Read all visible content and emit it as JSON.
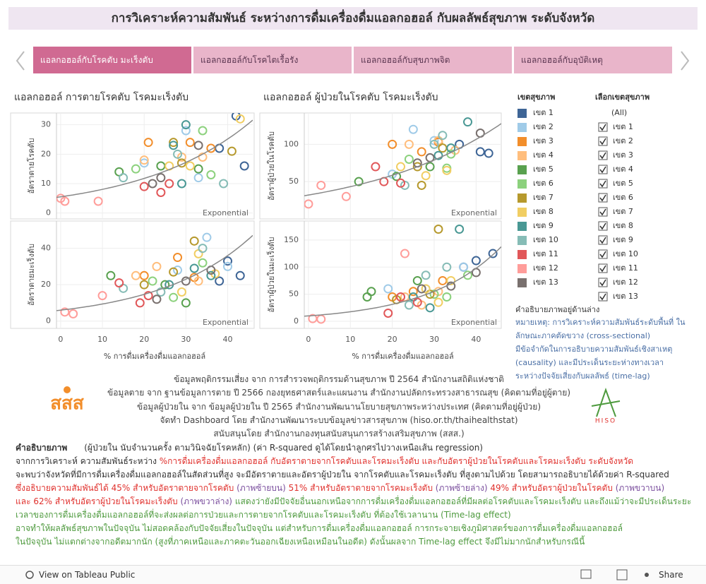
{
  "title": "การวิเคราะห์ความสัมพันธ์ ระหว่างการดื่มเครื่องดื่มแอลกอฮอล์ กับผลลัพธ์สุขภาพ ระดับจังหวัด",
  "tabs": [
    "แอลกอฮอล์กับโรคตับ มะเร็งตับ",
    "แอลกอฮอล์กับโรคไตเรื้อรัง",
    "แอลกอฮอล์กับสุขภาพจิต",
    "แอลกอฮอล์กับอุบัติเหตุ"
  ],
  "legend_title": "เขตสุขภาพ",
  "filter": {
    "title": "เลือกเขตสุขภาพ",
    "items": [
      "(All)",
      "เขต 1",
      "เขต 2",
      "เขต 3",
      "เขต 4",
      "เขต 5",
      "เขต 6",
      "เขต 7",
      "เขต 8",
      "เขต 9",
      "เขต 10",
      "เขต 11",
      "เขต 12",
      "เขต 13"
    ]
  },
  "side_note": {
    "heading": "คำอธิบายภาพอยู่ด้านล่าง",
    "color": "#4a6fa5",
    "lines": [
      "หมายเหตุ: การวิเคราะห์ความสัมพันธ์ระดับพื้นที่ ใน",
      "ลักษณะภาคตัดขวาง (cross-sectional)",
      "มีข้อจำกัดในการอธิบายความสัมพันธ์เชิงสาเหตุ",
      "(causality) และมีประเด็นระยะห่างทางเวลา",
      "ระหว่างปัจจัยเสี่ยงกับผลลัพธ์ (time-lag)"
    ]
  },
  "sources": [
    "ข้อมูลพฤติกรรมเสี่ยง จาก การสำรวจพฤติกรรมด้านสุขภาพ ปี 2564 สำนักงานสถิติแห่งชาติ",
    "ข้อมูลตาย จาก ฐานข้อมูลการตาย ปี 2566 กองยุทธศาสตร์และแผนงาน สำนักงานปลัดกระทรวงสาธารณสุข (คิดตามที่อยู่ผู้ตาย)",
    "ข้อมูลผู้ป่วยใน จาก ข้อมูลผู้ป่วยใน ปี 2565 สำนักงานพัฒนานโยบายสุขภาพระหว่างประเทศ (คิดตามที่อยู่ผู้ป่วย)",
    "จัดทำ Dashboard โดย สำนักงานพัฒนาระบบข้อมูลข่าวสารสุขภาพ (hiso.or.th/thaihealthstat)",
    "สนับสนุนโดย สำนักงานกองทุนสนับสนุนการสร้างเสริมสุขภาพ (สสส.)"
  ],
  "logos": {
    "left": "สสส",
    "right": "HISO"
  },
  "notes": {
    "title": "คำอธิบายภาพ",
    "lines": [
      [
        {
          "text": "(ผู้ป่วยใน นับจำนวนครั้ง ตามวินิจฉัยโรคหลัก) (ค่า R-squared ดูได้โดยนำลูกศรไปวางเหนือเส้น regression)",
          "color": "#333333"
        }
      ],
      [
        {
          "text": "จากการวิเคราะห์ ความสัมพันธ์ระหว่าง ",
          "color": "#333333"
        },
        {
          "text": "%การดื่มเครื่องดื่มแอลกอฮอล์ กับอัตราตายจากโรคตับและโรคมะเร็งตับ และกับอัตราผู้ป่วยในโรคตับและโรคมะเร็งตับ ระดับจังหวัด",
          "color": "#e0302c"
        }
      ],
      [
        {
          "text": "จะพบว่าจังหวัดที่มีการดื่มเครื่องดื่มแอลกอฮอล์ในสัดส่วนที่สูง จะมีอัตราตายและอัตราผู้ป่วยใน จากโรคตับและโรคมะเร็งตับ ที่สูงตามไปด้วย โดยสามารถอธิบายได้ด้วยค่า R-squared",
          "color": "#333333"
        }
      ],
      [
        {
          "text": "ซึ่งอธิบายความสัมพันธ์ได้ 45% สำหรับอัตราตายจากโรคตับ",
          "color": "#e0302c"
        },
        {
          "text": " (ภาพซ้ายบน) ",
          "color": "#7b4f9e"
        },
        {
          "text": "51% สำหรับอัตราตายจากโรคมะเร็งตับ",
          "color": "#e0302c"
        },
        {
          "text": " (ภาพซ้ายล่าง) ",
          "color": "#7b4f9e"
        },
        {
          "text": "49% สำหรับอัตราผู้ป่วยในโรคตับ",
          "color": "#e0302c"
        },
        {
          "text": " (ภาพขวาบน)",
          "color": "#7b4f9e"
        }
      ],
      [
        {
          "text": "และ 62% สำหรับอัตราผู้ป่วยในโรคมะเร็งตับ",
          "color": "#e0302c"
        },
        {
          "text": " (ภาพขวาล่าง) ",
          "color": "#7b4f9e"
        },
        {
          "text": " แสดงว่ายังมีปัจจัยอื่นนอกเหนือจากการดื่มเครื่องดื่มแอลกอฮอล์ที่มีผลต่อโรคตับและโรคมะเร็งตับ และถึงแม้ว่าจะมีประเด็นระยะ",
          "color": "#4e9a3e"
        }
      ],
      [
        {
          "text": "เวลาของการดื่มเครื่องดื่มแอลกอฮอล์ที่จะส่งผลต่อการป่วยและการตายจากโรคตับและโรคมะเร็งตับ ที่ต้องใช้เวลานาน (Time-lag effect)",
          "color": "#4e9a3e"
        }
      ],
      [
        {
          "text": "อาจทำให้ผลลัพธ์สุขภาพในปัจจุบัน ไม่สอดคล้องกับปัจจัยเสี่ยงในปัจจุบัน  แต่สำหรับการดื่มเครื่องดื่มแอลกอฮอล์ การกระจายเชิงภูมิศาสตร์ของการดื่มเครื่องดื่มแอลกอฮอล์",
          "color": "#4e9a3e"
        }
      ],
      [
        {
          "text": "ในปัจจุบัน ไม่แตกต่างจากอดีตมากนัก (สูงที่ภาคเหนือและภาคตะวันออกเฉียงเหนือเหมือนในอดีต) ดังนั้นผลจาก Time-lag effect จึงมีไม่มากนักสำหรับกรณีนี้",
          "color": "#4e9a3e"
        }
      ]
    ]
  },
  "toolbar": {
    "view": "View on Tableau Public",
    "share": "Share"
  },
  "chart_data": [
    {
      "type": "scatter",
      "title": "แอลกอฮอล์ การตายโรคตับ โรคมะเร็งตับ",
      "y_label": "อัตราตายโรคตับ",
      "xlim": [
        -1,
        46
      ],
      "xticks": [
        0,
        10,
        20,
        30,
        40
      ],
      "ylim": [
        -2,
        34
      ],
      "yticks": [
        0,
        10,
        20,
        30
      ],
      "grid": true,
      "trend": {
        "label": "Exponential",
        "a": 5.5,
        "b": 0.038
      },
      "series": [
        {
          "name": "เขต 1",
          "color": "#3e6596",
          "x": [
            42,
            44,
            38
          ],
          "values": [
            33,
            16,
            22
          ]
        },
        {
          "name": "เขต 2",
          "color": "#a0cbe8",
          "x": [
            20,
            33,
            30
          ],
          "values": [
            17,
            12,
            28
          ]
        },
        {
          "name": "เขต 3",
          "color": "#f28e2b",
          "x": [
            21,
            31,
            36
          ],
          "values": [
            24,
            24,
            22
          ]
        },
        {
          "name": "เขต 4",
          "color": "#ffbe7d",
          "x": [
            20,
            29,
            34
          ],
          "values": [
            18,
            19,
            19
          ]
        },
        {
          "name": "เขต 5",
          "color": "#59a14f",
          "x": [
            14,
            24,
            33
          ],
          "values": [
            14,
            16,
            15
          ]
        },
        {
          "name": "เขต 6",
          "color": "#8cd17d",
          "x": [
            18,
            34,
            36
          ],
          "values": [
            15,
            28,
            13
          ]
        },
        {
          "name": "เขต 7",
          "color": "#b6992d",
          "x": [
            27,
            29,
            41
          ],
          "values": [
            24,
            17,
            21
          ]
        },
        {
          "name": "เขต 8",
          "color": "#f1ce63",
          "x": [
            26,
            31,
            43
          ],
          "values": [
            16,
            16,
            32
          ]
        },
        {
          "name": "เขต 9",
          "color": "#499894",
          "x": [
            30,
            27,
            29
          ],
          "values": [
            30,
            23,
            10
          ]
        },
        {
          "name": "เขต 10",
          "color": "#86bcb6",
          "x": [
            15,
            28,
            39
          ],
          "values": [
            12,
            20,
            10
          ]
        },
        {
          "name": "เขต 11",
          "color": "#e15759",
          "x": [
            20,
            26,
            24
          ],
          "values": [
            9,
            10,
            7
          ]
        },
        {
          "name": "เขต 12",
          "color": "#ff9d9a",
          "x": [
            0,
            1,
            9
          ],
          "values": [
            5,
            4,
            4
          ]
        },
        {
          "name": "เขต 13",
          "color": "#79706e",
          "x": [
            33,
            22,
            24
          ],
          "values": [
            23,
            10,
            12
          ]
        }
      ]
    },
    {
      "type": "scatter",
      "y_label": "อัตราตายมะเร็งตับ",
      "x_label": "% การดื่มเครื่องดื่มแอลกอฮอล์",
      "xlim": [
        -1,
        46
      ],
      "xticks": [
        0,
        10,
        20,
        30,
        40
      ],
      "ylim": [
        -4,
        55
      ],
      "yticks": [
        0,
        20,
        40
      ],
      "grid": true,
      "trend": {
        "label": "Exponential",
        "a": 6,
        "b": 0.0448
      },
      "series": [
        {
          "name": "เขต 1",
          "color": "#3e6596",
          "x": [
            40,
            43,
            38
          ],
          "values": [
            33,
            25,
            22
          ]
        },
        {
          "name": "เขต 2",
          "color": "#a0cbe8",
          "x": [
            28,
            35,
            40
          ],
          "values": [
            28,
            46,
            30
          ]
        },
        {
          "name": "เขต 3",
          "color": "#f28e2b",
          "x": [
            20,
            28,
            32
          ],
          "values": [
            25,
            35,
            24
          ]
        },
        {
          "name": "เขต 4",
          "color": "#ffbe7d",
          "x": [
            18,
            23,
            33
          ],
          "values": [
            25,
            30,
            22
          ]
        },
        {
          "name": "เขต 5",
          "color": "#59a14f",
          "x": [
            12,
            25,
            30
          ],
          "values": [
            25,
            20,
            10
          ]
        },
        {
          "name": "เขต 6",
          "color": "#8cd17d",
          "x": [
            22,
            27,
            34
          ],
          "values": [
            22,
            13,
            32
          ]
        },
        {
          "name": "เขต 7",
          "color": "#b6992d",
          "x": [
            27,
            32,
            20
          ],
          "values": [
            27,
            44,
            20
          ]
        },
        {
          "name": "เขต 8",
          "color": "#f1ce63",
          "x": [
            33,
            37,
            29
          ],
          "values": [
            37,
            26,
            16
          ]
        },
        {
          "name": "เขต 9",
          "color": "#499894",
          "x": [
            36,
            26,
            32
          ],
          "values": [
            25,
            20,
            29
          ]
        },
        {
          "name": "เขต 10",
          "color": "#86bcb6",
          "x": [
            15,
            34,
            24
          ],
          "values": [
            18,
            40,
            16
          ]
        },
        {
          "name": "เขต 11",
          "color": "#e15759",
          "x": [
            21,
            19,
            14
          ],
          "values": [
            14,
            10,
            21
          ]
        },
        {
          "name": "เขต 12",
          "color": "#ff9d9a",
          "x": [
            1,
            3,
            10
          ],
          "values": [
            5,
            4,
            14
          ]
        },
        {
          "name": "เขต 13",
          "color": "#79706e",
          "x": [
            23,
            30,
            36
          ],
          "values": [
            12,
            22,
            28
          ]
        }
      ]
    },
    {
      "type": "scatter",
      "title": "แอลกอฮอล์ ผู้ป่วยในโรคตับ โรคมะเร็งตับ",
      "y_label": "อัตราผู้ป่วยในโรคตับ",
      "xlim": [
        -1,
        46
      ],
      "xticks": [
        0,
        10,
        20,
        30,
        40
      ],
      "ylim": [
        0,
        142
      ],
      "yticks": [
        50,
        100
      ],
      "grid": true,
      "trend": {
        "label": "Exponential",
        "a": 32,
        "b": 0.0301
      },
      "series": [
        {
          "name": "เขต 1",
          "color": "#3e6596",
          "x": [
            36,
            41,
            43
          ],
          "values": [
            100,
            90,
            88
          ]
        },
        {
          "name": "เขต 2",
          "color": "#a0cbe8",
          "x": [
            25,
            20,
            30
          ],
          "values": [
            120,
            60,
            105
          ]
        },
        {
          "name": "เขต 3",
          "color": "#f28e2b",
          "x": [
            20,
            27,
            31
          ],
          "values": [
            100,
            90,
            103
          ]
        },
        {
          "name": "เขต 4",
          "color": "#ffbe7d",
          "x": [
            24,
            31,
            35
          ],
          "values": [
            100,
            105,
            92
          ]
        },
        {
          "name": "เขต 5",
          "color": "#59a14f",
          "x": [
            12,
            21,
            29
          ],
          "values": [
            50,
            57,
            70
          ]
        },
        {
          "name": "เขต 6",
          "color": "#8cd17d",
          "x": [
            24,
            34,
            33
          ],
          "values": [
            80,
            87,
            68
          ]
        },
        {
          "name": "เขต 7",
          "color": "#b6992d",
          "x": [
            26,
            32,
            27
          ],
          "values": [
            70,
            95,
            45
          ]
        },
        {
          "name": "เขต 8",
          "color": "#f1ce63",
          "x": [
            22,
            28,
            33
          ],
          "values": [
            70,
            58,
            65
          ]
        },
        {
          "name": "เขต 9",
          "color": "#499894",
          "x": [
            38,
            31,
            34
          ],
          "values": [
            130,
            85,
            95
          ]
        },
        {
          "name": "เขต 10",
          "color": "#86bcb6",
          "x": [
            32,
            30,
            23
          ],
          "values": [
            112,
            100,
            45
          ]
        },
        {
          "name": "เขต 11",
          "color": "#e15759",
          "x": [
            16,
            18,
            22
          ],
          "values": [
            70,
            50,
            48
          ]
        },
        {
          "name": "เขต 12",
          "color": "#ff9d9a",
          "x": [
            0,
            3,
            9
          ],
          "values": [
            20,
            45,
            30
          ]
        },
        {
          "name": "เขต 13",
          "color": "#79706e",
          "x": [
            41,
            26,
            29
          ],
          "values": [
            115,
            75,
            82
          ]
        }
      ]
    },
    {
      "type": "scatter",
      "y_label": "อัตราผู้ป่วยในมะเร็งตับ",
      "x_label": "% การดื่มเครื่องดื่มแอลกอฮอล์",
      "xlim": [
        -1,
        46
      ],
      "xticks": [
        0,
        10,
        20,
        30,
        40
      ],
      "ylim": [
        -13,
        185
      ],
      "yticks": [
        0,
        50,
        100,
        150
      ],
      "grid": true,
      "trend": {
        "label": "Exponential",
        "a": 10,
        "b": 0.057
      },
      "series": [
        {
          "name": "เขต 1",
          "color": "#3e6596",
          "x": [
            37,
            40,
            44
          ],
          "values": [
            100,
            112,
            125
          ]
        },
        {
          "name": "เขต 2",
          "color": "#a0cbe8",
          "x": [
            28,
            37,
            19
          ],
          "values": [
            60,
            100,
            60
          ]
        },
        {
          "name": "เขต 3",
          "color": "#f28e2b",
          "x": [
            20,
            25,
            32
          ],
          "values": [
            45,
            55,
            75
          ]
        },
        {
          "name": "เขต 4",
          "color": "#ffbe7d",
          "x": [
            23,
            27,
            31
          ],
          "values": [
            45,
            30,
            55
          ]
        },
        {
          "name": "เขต 5",
          "color": "#59a14f",
          "x": [
            14,
            15,
            26
          ],
          "values": [
            45,
            55,
            75
          ]
        },
        {
          "name": "เขต 6",
          "color": "#8cd17d",
          "x": [
            30,
            33,
            38
          ],
          "values": [
            50,
            45,
            85
          ]
        },
        {
          "name": "เขต 7",
          "color": "#b6992d",
          "x": [
            31,
            29,
            21
          ],
          "values": [
            170,
            50,
            40
          ]
        },
        {
          "name": "เขต 8",
          "color": "#f1ce63",
          "x": [
            28,
            34,
            31
          ],
          "values": [
            60,
            75,
            35
          ]
        },
        {
          "name": "เขต 9",
          "color": "#499894",
          "x": [
            36,
            25,
            29
          ],
          "values": [
            170,
            45,
            25
          ]
        },
        {
          "name": "เขต 10",
          "color": "#86bcb6",
          "x": [
            28,
            33,
            24
          ],
          "values": [
            85,
            100,
            30
          ]
        },
        {
          "name": "เขต 11",
          "color": "#e15759",
          "x": [
            19,
            22,
            26
          ],
          "values": [
            15,
            45,
            35
          ]
        },
        {
          "name": "เขต 12",
          "color": "#ff9d9a",
          "x": [
            1,
            3,
            23
          ],
          "values": [
            5,
            4,
            125
          ]
        },
        {
          "name": "เขต 13",
          "color": "#79706e",
          "x": [
            27,
            34,
            40
          ],
          "values": [
            60,
            65,
            90
          ]
        }
      ]
    }
  ]
}
